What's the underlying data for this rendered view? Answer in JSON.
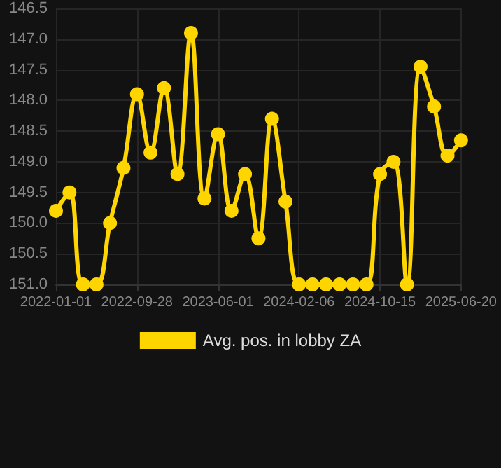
{
  "chart_data": {
    "type": "line",
    "categories": [
      "2022-01-01",
      null,
      null,
      null,
      null,
      null,
      "2022-09-28",
      null,
      null,
      null,
      null,
      null,
      "2023-06-01",
      null,
      null,
      null,
      null,
      null,
      "2024-02-06",
      null,
      null,
      null,
      null,
      null,
      "2024-10-15",
      null,
      null,
      null,
      null,
      null,
      "2025-06-20"
    ],
    "series": [
      {
        "name": "Avg. pos. in lobby ZA",
        "color": "#ffd500",
        "values": [
          149.8,
          149.5,
          151.0,
          151.0,
          150.0,
          149.1,
          147.9,
          148.85,
          147.8,
          149.2,
          146.9,
          149.6,
          148.55,
          149.8,
          149.2,
          150.25,
          148.3,
          149.65,
          151.0,
          151.0,
          151.0,
          151.0,
          151.0,
          151.0,
          149.2,
          149.0,
          151.0,
          147.45,
          148.1,
          148.9,
          148.65
        ]
      }
    ],
    "ylim": [
      151.0,
      146.5
    ],
    "yticks": [
      {
        "value": 146.5,
        "label": "146.5"
      },
      {
        "value": 147,
        "label": "147.0"
      },
      {
        "value": 147.5,
        "label": "147.5"
      },
      {
        "value": 148,
        "label": "148.0"
      },
      {
        "value": 148.5,
        "label": "148.5"
      },
      {
        "value": 149,
        "label": "149.0"
      },
      {
        "value": 149.5,
        "label": "149.5"
      },
      {
        "value": 150,
        "label": "150.0"
      },
      {
        "value": 150.5,
        "label": "150.5"
      },
      {
        "value": 151,
        "label": "151.0"
      }
    ],
    "grid": true,
    "legend": "bottom",
    "marker": "circle",
    "line_style": "solid"
  }
}
